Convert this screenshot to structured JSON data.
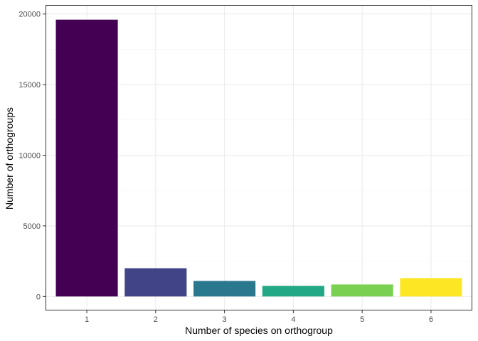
{
  "chart_data": {
    "type": "bar",
    "title": "",
    "xlabel": "Number of species on orthogroup",
    "ylabel": "Number of orthogroups",
    "categories": [
      "1",
      "2",
      "3",
      "4",
      "5",
      "6"
    ],
    "values": [
      19600,
      2000,
      1100,
      750,
      850,
      1300
    ],
    "bar_colors": [
      "#440154",
      "#414487",
      "#2A788E",
      "#22A884",
      "#7AD151",
      "#FDE725"
    ],
    "ylim": [
      -990,
      20640
    ],
    "y_ticks": [
      0,
      5000,
      10000,
      15000,
      20000
    ],
    "y_tick_labels": [
      "0",
      "5000",
      "10000",
      "15000",
      "20000"
    ],
    "grid": true,
    "legend": "none",
    "colors": {
      "panel_background": "#ffffff",
      "grid_major": "#ebebeb",
      "grid_minor": "#f5f5f5",
      "panel_border": "#333333",
      "tick_color": "#333333"
    }
  }
}
